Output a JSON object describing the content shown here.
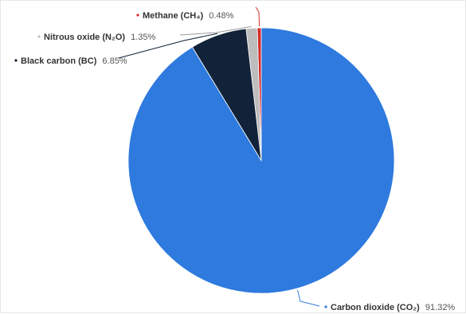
{
  "chart_data": {
    "type": "pie",
    "title": "",
    "slices": [
      {
        "label": "Carbon dioxide (CO₂)",
        "value": 91.32,
        "display": "91.32%",
        "color": "#2e7ade"
      },
      {
        "label": "Black carbon (BC)",
        "value": 6.85,
        "display": "6.85%",
        "color": "#112239"
      },
      {
        "label": "Nitrous oxide (N₂O)",
        "value": 1.35,
        "display": "1.35%",
        "color": "#bdbdbd"
      },
      {
        "label": "Methane (CH₄)",
        "value": 0.48,
        "display": "0.48%",
        "color": "#d42a2a"
      }
    ],
    "start_angle_deg": 0,
    "direction": "counterclockwise",
    "legend": "none"
  }
}
